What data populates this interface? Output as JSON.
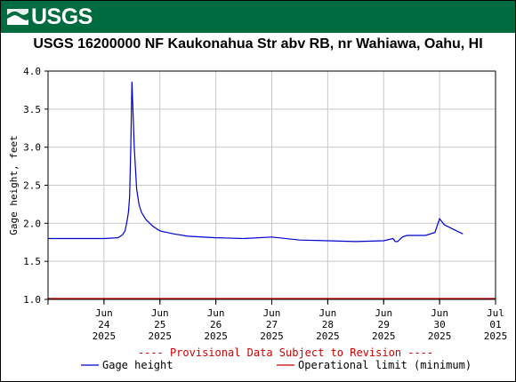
{
  "header": {
    "logo_text": "USGS",
    "logo_icon": "usgs-wave-icon",
    "brand_color": "#006b3e"
  },
  "chart_data": {
    "type": "line",
    "title": "USGS 16200000 NF Kaukonahua Str abv RB, nr Wahiawa, Oahu, HI",
    "xlabel": "",
    "ylabel": "Gage height, feet",
    "ylim": [
      1.0,
      4.0
    ],
    "yticks": [
      "1.0",
      "1.5",
      "2.0",
      "2.5",
      "3.0",
      "3.5",
      "4.0"
    ],
    "xticks": [
      {
        "line1": "Jun",
        "line2": "24",
        "line3": "2025"
      },
      {
        "line1": "Jun",
        "line2": "25",
        "line3": "2025"
      },
      {
        "line1": "Jun",
        "line2": "26",
        "line3": "2025"
      },
      {
        "line1": "Jun",
        "line2": "27",
        "line3": "2025"
      },
      {
        "line1": "Jun",
        "line2": "28",
        "line3": "2025"
      },
      {
        "line1": "Jun",
        "line2": "29",
        "line3": "2025"
      },
      {
        "line1": "Jun",
        "line2": "30",
        "line3": "2025"
      },
      {
        "line1": "Jul",
        "line2": "01",
        "line3": "2025"
      }
    ],
    "xlim_days": [
      "2025-06-23T12:00",
      "2025-07-01T12:00"
    ],
    "grid": true,
    "provisional_note": "---- Provisional Data Subject to Revision ----",
    "provisional_color": "#cc0000",
    "series": [
      {
        "name": "Gage height",
        "color": "#0000cc",
        "x": [
          "2025-06-23 12:00",
          "2025-06-24 00:00",
          "2025-06-24 12:00",
          "2025-06-24 18:00",
          "2025-06-24 20:00",
          "2025-06-24 21:00",
          "2025-06-24 21:30",
          "2025-06-24 22:00",
          "2025-06-24 22:30",
          "2025-06-24 23:00",
          "2025-06-24 23:30",
          "2025-06-25 00:00",
          "2025-06-25 01:00",
          "2025-06-25 02:00",
          "2025-06-25 03:00",
          "2025-06-25 04:00",
          "2025-06-25 06:00",
          "2025-06-25 09:00",
          "2025-06-25 12:00",
          "2025-06-25 18:00",
          "2025-06-26 00:00",
          "2025-06-26 12:00",
          "2025-06-27 00:00",
          "2025-06-27 12:00",
          "2025-06-28 00:00",
          "2025-06-28 12:00",
          "2025-06-29 00:00",
          "2025-06-29 12:00",
          "2025-06-29 16:00",
          "2025-06-29 17:00",
          "2025-06-29 18:00",
          "2025-06-29 20:00",
          "2025-06-29 22:00",
          "2025-06-30 00:00",
          "2025-06-30 06:00",
          "2025-06-30 10:00",
          "2025-06-30 12:00",
          "2025-06-30 14:00",
          "2025-06-30 18:00",
          "2025-06-30 22:00"
        ],
        "y": [
          1.8,
          1.8,
          1.8,
          1.81,
          1.85,
          1.9,
          1.97,
          2.05,
          2.15,
          2.35,
          3.0,
          3.86,
          3.0,
          2.45,
          2.25,
          2.15,
          2.05,
          1.96,
          1.9,
          1.86,
          1.83,
          1.81,
          1.8,
          1.82,
          1.78,
          1.77,
          1.76,
          1.77,
          1.8,
          1.76,
          1.76,
          1.82,
          1.84,
          1.84,
          1.84,
          1.88,
          2.06,
          1.98,
          1.92,
          1.86
        ]
      },
      {
        "name": "Operational limit (minimum)",
        "color": "#cc0000",
        "x": [
          "2025-06-23 12:00",
          "2025-07-01 12:00"
        ],
        "y": [
          1.01,
          1.01
        ]
      }
    ],
    "legend_placement": "bottom"
  }
}
